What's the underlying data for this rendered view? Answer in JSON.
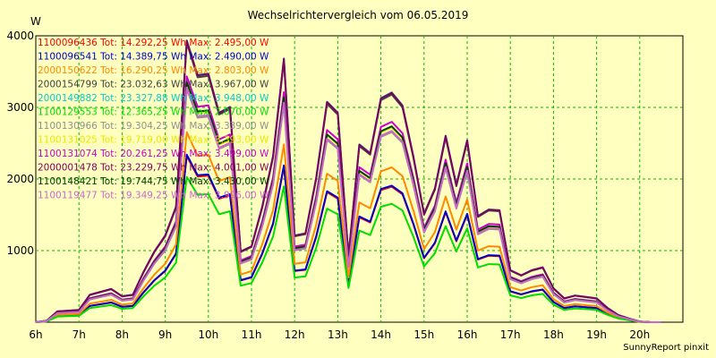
{
  "chart_data": {
    "type": "line",
    "title": "Wechselrichtervergleich vom 06.05.2019",
    "y_unit_label": "W",
    "credit": "SunnyReport pinxit",
    "xlim": [
      6,
      21
    ],
    "ylim": [
      0,
      4000
    ],
    "x_ticks": [
      {
        "value": 6,
        "label": "6h"
      },
      {
        "value": 7,
        "label": "7h"
      },
      {
        "value": 8,
        "label": "8h"
      },
      {
        "value": 9,
        "label": "9h"
      },
      {
        "value": 10,
        "label": "10h"
      },
      {
        "value": 11,
        "label": "11h"
      },
      {
        "value": 12,
        "label": "12h"
      },
      {
        "value": 13,
        "label": "13h"
      },
      {
        "value": 14,
        "label": "14h"
      },
      {
        "value": 15,
        "label": "15h"
      },
      {
        "value": 16,
        "label": "16h"
      },
      {
        "value": 17,
        "label": "17h"
      },
      {
        "value": 18,
        "label": "18h"
      },
      {
        "value": 19,
        "label": "19h"
      },
      {
        "value": 20,
        "label": "20h"
      }
    ],
    "y_ticks": [
      {
        "value": 1000,
        "label": "1000"
      },
      {
        "value": 2000,
        "label": "2000"
      },
      {
        "value": 3000,
        "label": "3000"
      },
      {
        "value": 4000,
        "label": "4000"
      }
    ],
    "grid": true,
    "legend_position": "top-left",
    "x": [
      6.0,
      6.25,
      6.5,
      6.75,
      7.0,
      7.25,
      7.5,
      7.75,
      8.0,
      8.25,
      8.5,
      8.75,
      9.0,
      9.25,
      9.5,
      9.75,
      10.0,
      10.25,
      10.5,
      10.75,
      11.0,
      11.25,
      11.5,
      11.75,
      12.0,
      12.25,
      12.5,
      12.75,
      13.0,
      13.25,
      13.5,
      13.75,
      14.0,
      14.25,
      14.5,
      14.75,
      15.0,
      15.25,
      15.5,
      15.75,
      16.0,
      16.25,
      16.5,
      16.75,
      17.0,
      17.25,
      17.5,
      17.75,
      18.0,
      18.25,
      18.5,
      18.75,
      19.0,
      19.25,
      19.5,
      19.75,
      20.0,
      20.25,
      20.5
    ],
    "reference": [
      0,
      20,
      150,
      160,
      170,
      380,
      420,
      460,
      360,
      380,
      700,
      980,
      1200,
      1600,
      3900,
      3420,
      3440,
      2900,
      2980,
      980,
      1050,
      1600,
      2300,
      3650,
      1200,
      1230,
      2000,
      3050,
      2900,
      920,
      2460,
      2340,
      3100,
      3180,
      3000,
      2300,
      1500,
      1850,
      2580,
      1900,
      2520,
      1470,
      1560,
      1550,
      720,
      650,
      720,
      760,
      470,
      330,
      370,
      350,
      330,
      200,
      100,
      50,
      10,
      0,
      0
    ],
    "series": [
      {
        "name": "1100096436 Tot: 14.292,25 Wh Max: 2.495,00 W",
        "color": "#ff0000",
        "scale": 0.595
      },
      {
        "name": "1100096541 Tot: 14.389,75 Wh Max: 2.490,00 W",
        "color": "#0000cc",
        "scale": 0.6
      },
      {
        "name": "2000150622 Tot: 16.290,25 Wh Max: 2.803,00 W",
        "color": "#ff8800",
        "scale": 0.68
      },
      {
        "name": "2000154799 Tot: 23.032,63 Wh Max: 3.967,00 W",
        "color": "#404040",
        "scale": 1.0
      },
      {
        "name": "2000149882 Tot: 23.327,88 Wh Max: 3.948,00 W",
        "color": "#00cccc",
        "scale": 1.01
      },
      {
        "name": "1100129553 Tot: 12.365,25 Wh Max: 2.070,00 W",
        "color": "#00dd00",
        "scale": 0.52
      },
      {
        "name": "1100130966 Tot: 19.304,25 Wh Max: 3.339,00 W",
        "color": "#909090",
        "scale": 0.835
      },
      {
        "name": "1100131025 Tot: 19.719,00 Wh Max: 3.393,00 W",
        "color": "#e8e800",
        "scale": 0.855
      },
      {
        "name": "1100131074 Tot: 20.261,25 Wh Max: 3.499,00 W",
        "color": "#cc00cc",
        "scale": 0.88
      },
      {
        "name": "2000001478 Tot: 23.229,75 Wh Max: 4.001,00 W",
        "color": "#800060",
        "scale": 1.008
      },
      {
        "name": "1100148421 Tot: 19.744,75 Wh Max: 3.430,00 W",
        "color": "#004000",
        "scale": 0.86
      },
      {
        "name": "1100119477 Tot: 19.349,25 Wh Max: 3.996,00 W",
        "color": "#cc66cc",
        "scale": 0.84
      }
    ]
  }
}
